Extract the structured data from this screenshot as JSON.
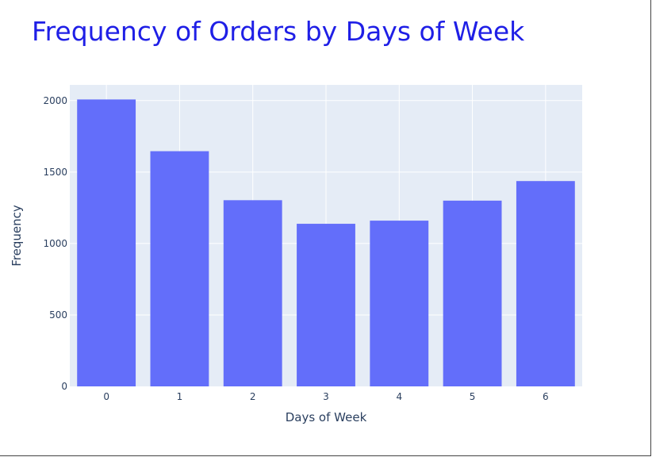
{
  "chart_data": {
    "type": "bar",
    "title": "Frequency of Orders by Days of Week",
    "xlabel": "Days of Week",
    "ylabel": "Frequency",
    "categories": [
      "0",
      "1",
      "2",
      "3",
      "4",
      "5",
      "6"
    ],
    "values": [
      2008,
      1646,
      1303,
      1138,
      1160,
      1300,
      1437
    ],
    "ylim": [
      0,
      2110
    ],
    "yticks": [
      0,
      500,
      1000,
      1500,
      2000
    ],
    "grid": true,
    "legend": "none"
  },
  "colors": {
    "bar": "#636efa",
    "plot_bg": "#e5ecf6",
    "grid": "#ffffff",
    "title": "#1f1fe6",
    "text": "#2a3f5f"
  }
}
